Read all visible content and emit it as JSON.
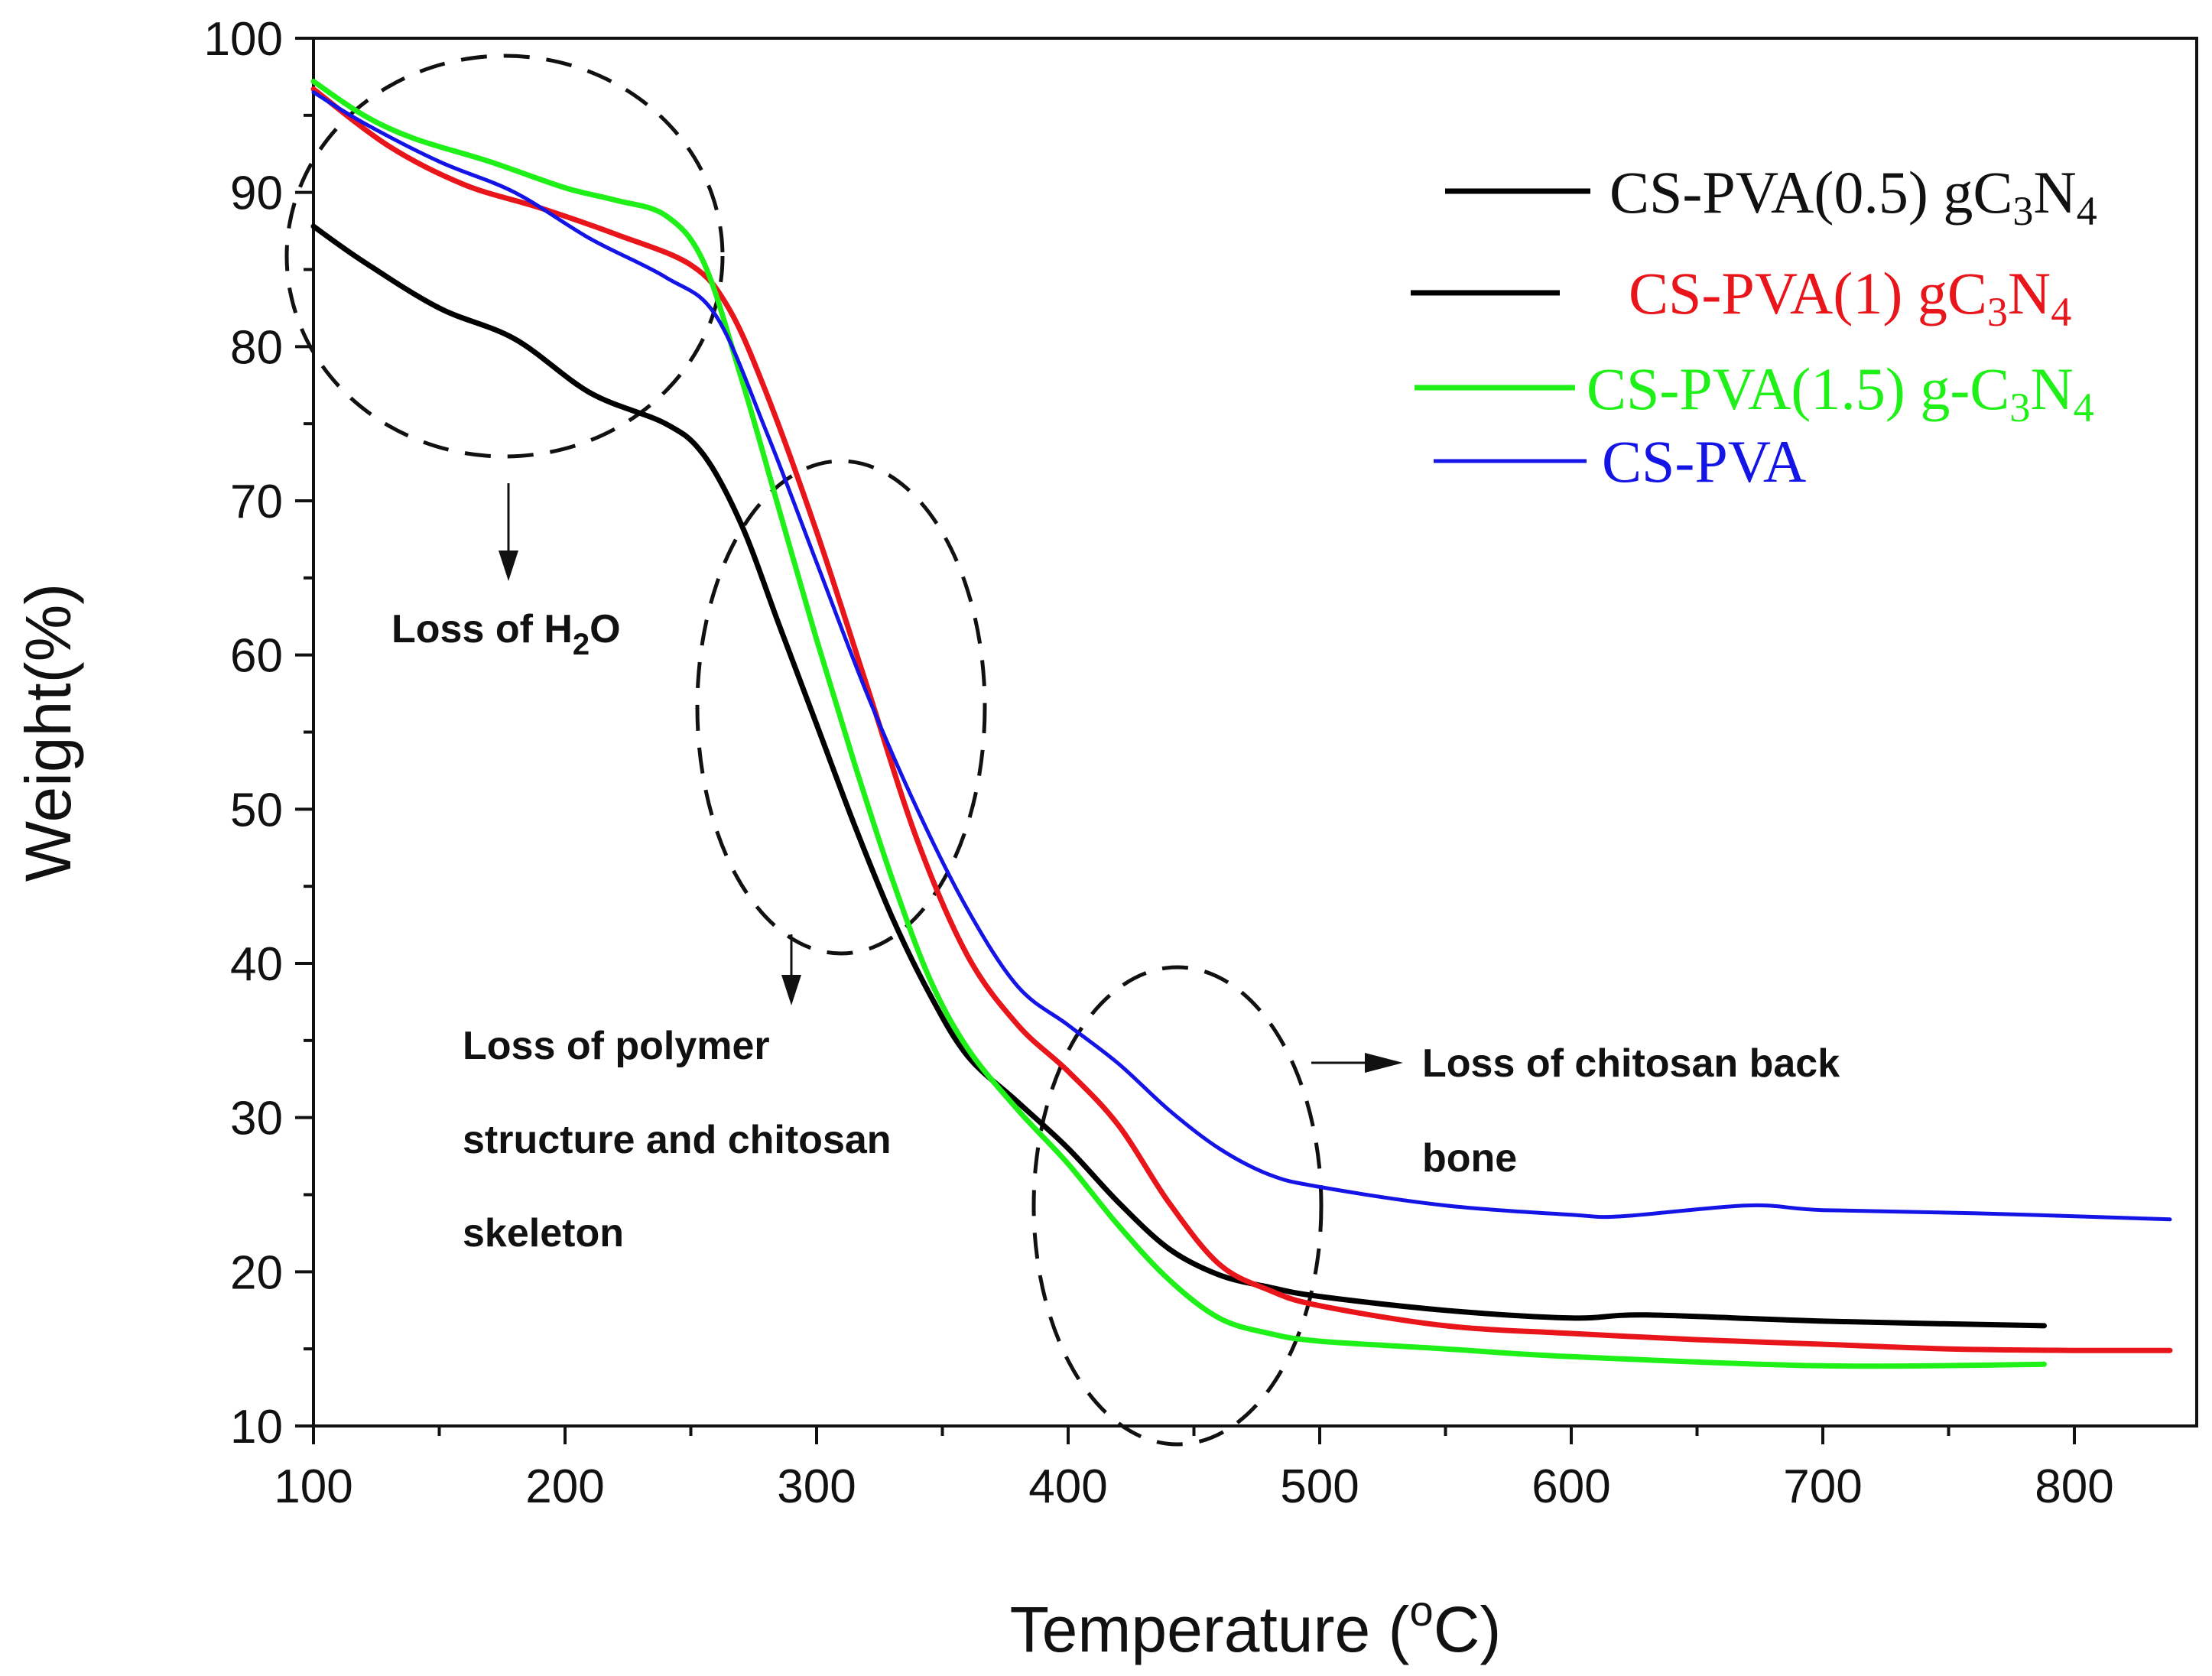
{
  "chart_data": {
    "type": "line",
    "xlabel": "Temperature (",
    "xlabel_sup": "o",
    "xlabel_end": "C)",
    "ylabel": "Weight(%)",
    "xlim": [
      100,
      840
    ],
    "ylim": [
      10,
      100
    ],
    "xticks": [
      100,
      200,
      300,
      400,
      500,
      600,
      700,
      800
    ],
    "yticks": [
      10,
      20,
      30,
      40,
      50,
      60,
      70,
      80,
      90,
      100
    ],
    "legend_position": "top-right",
    "series": [
      {
        "name": "CS-PVA(0.5) gC3N4",
        "color": "#000000",
        "x": [
          100,
          120,
          150,
          180,
          210,
          240,
          255,
          270,
          285,
          300,
          315,
          330,
          345,
          360,
          380,
          400,
          420,
          440,
          460,
          480,
          500,
          550,
          600,
          630,
          700,
          788
        ],
        "y": [
          87.8,
          85.5,
          82.5,
          80.5,
          77.0,
          75.0,
          73.0,
          68.5,
          62.0,
          55.5,
          49.0,
          43.0,
          38.0,
          34.0,
          31.0,
          28.0,
          24.5,
          21.5,
          19.8,
          19.0,
          18.4,
          17.5,
          17.0,
          17.2,
          16.8,
          16.5
        ]
      },
      {
        "name": "CS-PVA(1) gC3N4",
        "color": "#e8151b",
        "x": [
          100,
          130,
          160,
          190,
          220,
          250,
          265,
          280,
          300,
          320,
          340,
          360,
          380,
          400,
          420,
          440,
          460,
          480,
          500,
          550,
          600,
          650,
          700,
          750,
          800,
          838
        ],
        "y": [
          96.7,
          93.0,
          90.5,
          89.0,
          87.3,
          85.3,
          82.5,
          77.0,
          68.0,
          58.0,
          48.0,
          40.5,
          36.0,
          33.0,
          29.5,
          24.5,
          20.5,
          18.8,
          17.8,
          16.5,
          16.0,
          15.6,
          15.3,
          15.0,
          14.9,
          14.9
        ]
      },
      {
        "name": "CS-PVA(1.5) g-C3N4",
        "color": "#1ef018",
        "x": [
          100,
          120,
          140,
          170,
          200,
          220,
          240,
          255,
          270,
          285,
          300,
          315,
          330,
          345,
          360,
          380,
          400,
          420,
          440,
          460,
          480,
          500,
          550,
          600,
          700,
          788
        ],
        "y": [
          97.2,
          95.0,
          93.5,
          92.0,
          90.3,
          89.5,
          88.5,
          85.5,
          78.0,
          69.5,
          61.0,
          53.0,
          45.5,
          39.0,
          34.5,
          30.5,
          27.0,
          23.0,
          19.5,
          17.0,
          16.0,
          15.5,
          15.0,
          14.5,
          13.9,
          14.0
        ]
      },
      {
        "name": "CS-PVA",
        "color": "#1414e6",
        "x": [
          100,
          120,
          150,
          180,
          210,
          240,
          260,
          280,
          300,
          320,
          340,
          360,
          380,
          400,
          420,
          440,
          460,
          480,
          500,
          550,
          600,
          620,
          670,
          700,
          760,
          838
        ],
        "y": [
          96.5,
          94.5,
          92.0,
          90.0,
          87.0,
          84.5,
          82.0,
          74.5,
          66.0,
          57.5,
          50.0,
          43.5,
          38.5,
          36.0,
          33.5,
          30.5,
          28.0,
          26.3,
          25.5,
          24.3,
          23.7,
          23.6,
          24.3,
          24.0,
          23.8,
          23.4
        ]
      }
    ],
    "annotations": {
      "water": {
        "text": "Loss of H",
        "sub": "2",
        "end": "O"
      },
      "polymer": {
        "lines": [
          "Loss of polymer",
          "structure and chitosan",
          "skeleton"
        ]
      },
      "backbone": {
        "lines": [
          "Loss of chitosan back",
          "bone"
        ]
      }
    },
    "legend": [
      {
        "base": "CS-PVA(0.5) gC",
        "sub1": "3",
        "mid": "N",
        "sub2": "4",
        "color": "#111111",
        "line_color": "#000000"
      },
      {
        "base": "CS-PVA(1) gC",
        "sub1": "3",
        "mid": "N",
        "sub2": "4",
        "color": "#e8151b",
        "line_color": "#000000"
      },
      {
        "base": "CS-PVA(1.5) g-C",
        "sub1": "3",
        "mid": "N",
        "sub2": "4",
        "color": "#1ef018",
        "line_color": "#1ef018"
      },
      {
        "base": "CS-PVA",
        "color": "#1414e6",
        "line_color": "#1414e6"
      }
    ]
  }
}
